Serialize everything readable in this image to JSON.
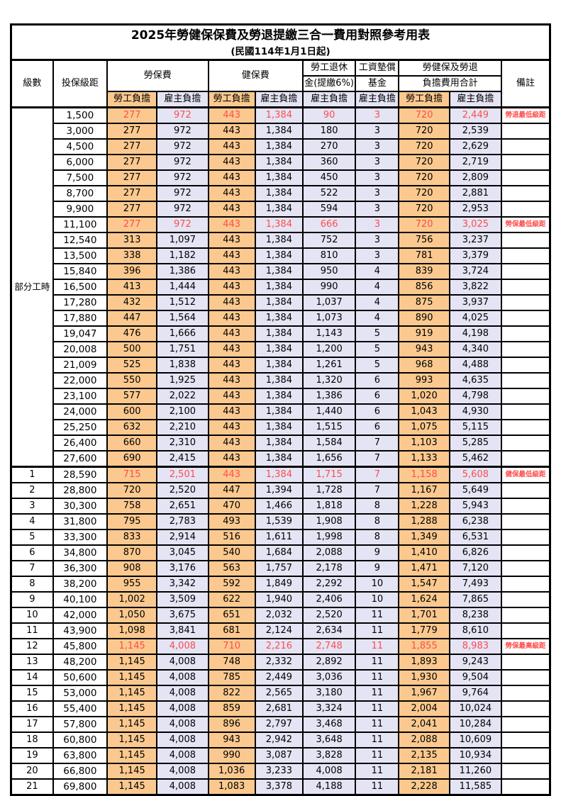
{
  "title": {
    "line1": "2025年勞健保保費及勞退提繳三合一費用對照參考用表",
    "line2": "(民國114年1月1日起)"
  },
  "header": {
    "level": "級數",
    "bracket": "投保級距",
    "labor_insurance": "勞保費",
    "health_insurance": "健保費",
    "pension_line1": "勞工退休",
    "pension_line2": "金(提繳6%)",
    "wage_fund_line1": "工資墊償",
    "wage_fund_line2": "基金",
    "total_line1": "勞健保及勞退",
    "total_line2": "負擔費用合計",
    "employee_share": "勞工負擔",
    "employer_share": "雇主負擔",
    "remark": "備註"
  },
  "group": {
    "label": "部分工時",
    "span": 23
  },
  "colors": {
    "employee_bg": "#FBC98F",
    "employer_bg": "#E4E4F4",
    "highlight_text": "#FF4C4C"
  },
  "rows": [
    {
      "level": "",
      "bracket": "1,500",
      "values": [
        "277",
        "972",
        "443",
        "1,384",
        "90",
        "3",
        "720",
        "2,449"
      ],
      "remark": "勞退最低級距",
      "highlight": true
    },
    {
      "level": "",
      "bracket": "3,000",
      "values": [
        "277",
        "972",
        "443",
        "1,384",
        "180",
        "3",
        "720",
        "2,539"
      ],
      "remark": "",
      "highlight": false
    },
    {
      "level": "",
      "bracket": "4,500",
      "values": [
        "277",
        "972",
        "443",
        "1,384",
        "270",
        "3",
        "720",
        "2,629"
      ],
      "remark": "",
      "highlight": false
    },
    {
      "level": "",
      "bracket": "6,000",
      "values": [
        "277",
        "972",
        "443",
        "1,384",
        "360",
        "3",
        "720",
        "2,719"
      ],
      "remark": "",
      "highlight": false
    },
    {
      "level": "",
      "bracket": "7,500",
      "values": [
        "277",
        "972",
        "443",
        "1,384",
        "450",
        "3",
        "720",
        "2,809"
      ],
      "remark": "",
      "highlight": false
    },
    {
      "level": "",
      "bracket": "8,700",
      "values": [
        "277",
        "972",
        "443",
        "1,384",
        "522",
        "3",
        "720",
        "2,881"
      ],
      "remark": "",
      "highlight": false
    },
    {
      "level": "",
      "bracket": "9,900",
      "values": [
        "277",
        "972",
        "443",
        "1,384",
        "594",
        "3",
        "720",
        "2,953"
      ],
      "remark": "",
      "highlight": false
    },
    {
      "level": "",
      "bracket": "11,100",
      "values": [
        "277",
        "972",
        "443",
        "1,384",
        "666",
        "3",
        "720",
        "3,025"
      ],
      "remark": "勞保最低級距",
      "highlight": true
    },
    {
      "level": "",
      "bracket": "12,540",
      "values": [
        "313",
        "1,097",
        "443",
        "1,384",
        "752",
        "3",
        "756",
        "3,237"
      ],
      "remark": "",
      "highlight": false
    },
    {
      "level": "",
      "bracket": "13,500",
      "values": [
        "338",
        "1,182",
        "443",
        "1,384",
        "810",
        "3",
        "781",
        "3,379"
      ],
      "remark": "",
      "highlight": false
    },
    {
      "level": "",
      "bracket": "15,840",
      "values": [
        "396",
        "1,386",
        "443",
        "1,384",
        "950",
        "4",
        "839",
        "3,724"
      ],
      "remark": "",
      "highlight": false
    },
    {
      "level": "",
      "bracket": "16,500",
      "values": [
        "413",
        "1,444",
        "443",
        "1,384",
        "990",
        "4",
        "856",
        "3,822"
      ],
      "remark": "",
      "highlight": false
    },
    {
      "level": "",
      "bracket": "17,280",
      "values": [
        "432",
        "1,512",
        "443",
        "1,384",
        "1,037",
        "4",
        "875",
        "3,937"
      ],
      "remark": "",
      "highlight": false
    },
    {
      "level": "",
      "bracket": "17,880",
      "values": [
        "447",
        "1,564",
        "443",
        "1,384",
        "1,073",
        "4",
        "890",
        "4,025"
      ],
      "remark": "",
      "highlight": false
    },
    {
      "level": "",
      "bracket": "19,047",
      "values": [
        "476",
        "1,666",
        "443",
        "1,384",
        "1,143",
        "5",
        "919",
        "4,198"
      ],
      "remark": "",
      "highlight": false
    },
    {
      "level": "",
      "bracket": "20,008",
      "values": [
        "500",
        "1,751",
        "443",
        "1,384",
        "1,200",
        "5",
        "943",
        "4,340"
      ],
      "remark": "",
      "highlight": false
    },
    {
      "level": "",
      "bracket": "21,009",
      "values": [
        "525",
        "1,838",
        "443",
        "1,384",
        "1,261",
        "5",
        "968",
        "4,488"
      ],
      "remark": "",
      "highlight": false
    },
    {
      "level": "",
      "bracket": "22,000",
      "values": [
        "550",
        "1,925",
        "443",
        "1,384",
        "1,320",
        "6",
        "993",
        "4,635"
      ],
      "remark": "",
      "highlight": false
    },
    {
      "level": "",
      "bracket": "23,100",
      "values": [
        "577",
        "2,022",
        "443",
        "1,384",
        "1,386",
        "6",
        "1,020",
        "4,798"
      ],
      "remark": "",
      "highlight": false
    },
    {
      "level": "",
      "bracket": "24,000",
      "values": [
        "600",
        "2,100",
        "443",
        "1,384",
        "1,440",
        "6",
        "1,043",
        "4,930"
      ],
      "remark": "",
      "highlight": false
    },
    {
      "level": "",
      "bracket": "25,250",
      "values": [
        "632",
        "2,210",
        "443",
        "1,384",
        "1,515",
        "6",
        "1,075",
        "5,115"
      ],
      "remark": "",
      "highlight": false
    },
    {
      "level": "",
      "bracket": "26,400",
      "values": [
        "660",
        "2,310",
        "443",
        "1,384",
        "1,584",
        "7",
        "1,103",
        "5,285"
      ],
      "remark": "",
      "highlight": false
    },
    {
      "level": "",
      "bracket": "27,600",
      "values": [
        "690",
        "2,415",
        "443",
        "1,384",
        "1,656",
        "7",
        "1,133",
        "5,462"
      ],
      "remark": "",
      "highlight": false
    },
    {
      "level": "1",
      "bracket": "28,590",
      "values": [
        "715",
        "2,501",
        "443",
        "1,384",
        "1,715",
        "7",
        "1,158",
        "5,608"
      ],
      "remark": "健保最低級距",
      "highlight": true
    },
    {
      "level": "2",
      "bracket": "28,800",
      "values": [
        "720",
        "2,520",
        "447",
        "1,394",
        "1,728",
        "7",
        "1,167",
        "5,649"
      ],
      "remark": "",
      "highlight": false
    },
    {
      "level": "3",
      "bracket": "30,300",
      "values": [
        "758",
        "2,651",
        "470",
        "1,466",
        "1,818",
        "8",
        "1,228",
        "5,943"
      ],
      "remark": "",
      "highlight": false
    },
    {
      "level": "4",
      "bracket": "31,800",
      "values": [
        "795",
        "2,783",
        "493",
        "1,539",
        "1,908",
        "8",
        "1,288",
        "6,238"
      ],
      "remark": "",
      "highlight": false
    },
    {
      "level": "5",
      "bracket": "33,300",
      "values": [
        "833",
        "2,914",
        "516",
        "1,611",
        "1,998",
        "8",
        "1,349",
        "6,531"
      ],
      "remark": "",
      "highlight": false
    },
    {
      "level": "6",
      "bracket": "34,800",
      "values": [
        "870",
        "3,045",
        "540",
        "1,684",
        "2,088",
        "9",
        "1,410",
        "6,826"
      ],
      "remark": "",
      "highlight": false
    },
    {
      "level": "7",
      "bracket": "36,300",
      "values": [
        "908",
        "3,176",
        "563",
        "1,757",
        "2,178",
        "9",
        "1,471",
        "7,120"
      ],
      "remark": "",
      "highlight": false
    },
    {
      "level": "8",
      "bracket": "38,200",
      "values": [
        "955",
        "3,342",
        "592",
        "1,849",
        "2,292",
        "10",
        "1,547",
        "7,493"
      ],
      "remark": "",
      "highlight": false
    },
    {
      "level": "9",
      "bracket": "40,100",
      "values": [
        "1,002",
        "3,509",
        "622",
        "1,940",
        "2,406",
        "10",
        "1,624",
        "7,865"
      ],
      "remark": "",
      "highlight": false
    },
    {
      "level": "10",
      "bracket": "42,000",
      "values": [
        "1,050",
        "3,675",
        "651",
        "2,032",
        "2,520",
        "11",
        "1,701",
        "8,238"
      ],
      "remark": "",
      "highlight": false
    },
    {
      "level": "11",
      "bracket": "43,900",
      "values": [
        "1,098",
        "3,841",
        "681",
        "2,124",
        "2,634",
        "11",
        "1,779",
        "8,610"
      ],
      "remark": "",
      "highlight": false
    },
    {
      "level": "12",
      "bracket": "45,800",
      "values": [
        "1,145",
        "4,008",
        "710",
        "2,216",
        "2,748",
        "11",
        "1,855",
        "8,983"
      ],
      "remark": "勞保最高級距",
      "highlight": true
    },
    {
      "level": "13",
      "bracket": "48,200",
      "values": [
        "1,145",
        "4,008",
        "748",
        "2,332",
        "2,892",
        "11",
        "1,893",
        "9,243"
      ],
      "remark": "",
      "highlight": false
    },
    {
      "level": "14",
      "bracket": "50,600",
      "values": [
        "1,145",
        "4,008",
        "785",
        "2,449",
        "3,036",
        "11",
        "1,930",
        "9,504"
      ],
      "remark": "",
      "highlight": false
    },
    {
      "level": "15",
      "bracket": "53,000",
      "values": [
        "1,145",
        "4,008",
        "822",
        "2,565",
        "3,180",
        "11",
        "1,967",
        "9,764"
      ],
      "remark": "",
      "highlight": false
    },
    {
      "level": "16",
      "bracket": "55,400",
      "values": [
        "1,145",
        "4,008",
        "859",
        "2,681",
        "3,324",
        "11",
        "2,004",
        "10,024"
      ],
      "remark": "",
      "highlight": false
    },
    {
      "level": "17",
      "bracket": "57,800",
      "values": [
        "1,145",
        "4,008",
        "896",
        "2,797",
        "3,468",
        "11",
        "2,041",
        "10,284"
      ],
      "remark": "",
      "highlight": false
    },
    {
      "level": "18",
      "bracket": "60,800",
      "values": [
        "1,145",
        "4,008",
        "943",
        "2,942",
        "3,648",
        "11",
        "2,088",
        "10,609"
      ],
      "remark": "",
      "highlight": false
    },
    {
      "level": "19",
      "bracket": "63,800",
      "values": [
        "1,145",
        "4,008",
        "990",
        "3,087",
        "3,828",
        "11",
        "2,135",
        "10,934"
      ],
      "remark": "",
      "highlight": false
    },
    {
      "level": "20",
      "bracket": "66,800",
      "values": [
        "1,145",
        "4,008",
        "1,036",
        "3,233",
        "4,008",
        "11",
        "2,181",
        "11,260"
      ],
      "remark": "",
      "highlight": false
    },
    {
      "level": "21",
      "bracket": "69,800",
      "values": [
        "1,145",
        "4,008",
        "1,083",
        "3,378",
        "4,188",
        "11",
        "2,228",
        "11,585"
      ],
      "remark": "",
      "highlight": false
    }
  ]
}
